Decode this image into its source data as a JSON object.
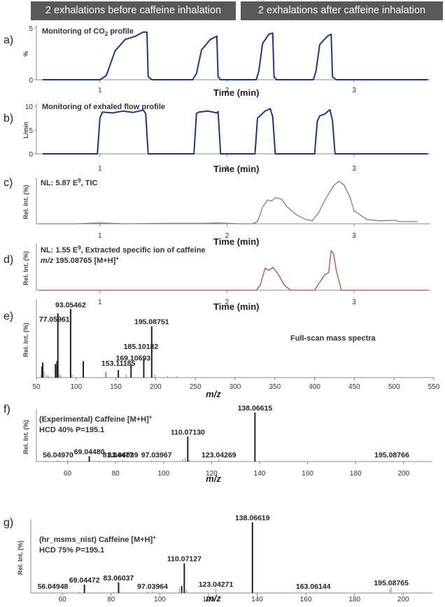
{
  "headers": [
    "2 exhalations before caffeine inhalation",
    "2 exhalations after caffeine inhalation"
  ],
  "chart_data": [
    {
      "panel": "a)",
      "type": "line",
      "title": "Monitoring of CO2 profile",
      "title_main": "Monitoring of CO",
      "title_sub": "2",
      "title_tail": " profile",
      "ylabel": "%",
      "xlabel": "Time (min)",
      "ylim": [
        0,
        5
      ],
      "xlim": [
        0.5,
        3.6
      ],
      "xticks": [
        1,
        2,
        3
      ],
      "yticks": [
        0,
        5
      ],
      "color": "#1f3a7a",
      "x": [
        0.55,
        1.0,
        1.05,
        1.12,
        1.2,
        1.28,
        1.34,
        1.37,
        1.38,
        1.41,
        1.55,
        1.73,
        1.76,
        1.8,
        1.87,
        1.92,
        1.93,
        1.95,
        2.1,
        2.23,
        2.25,
        2.28,
        2.33,
        2.36,
        2.37,
        2.39,
        2.55,
        2.68,
        2.7,
        2.73,
        2.79,
        2.82,
        2.83,
        2.86,
        3.58
      ],
      "y": [
        0,
        0,
        0.4,
        2.8,
        3.9,
        4.2,
        4.6,
        4.6,
        0.3,
        0,
        0,
        0,
        0.6,
        2.9,
        3.9,
        4.2,
        0.3,
        0,
        0,
        0,
        0.8,
        3.5,
        4.4,
        4.5,
        0.3,
        0,
        0,
        0,
        0.8,
        3.4,
        4.2,
        4.4,
        0.3,
        0,
        0
      ]
    },
    {
      "panel": "b)",
      "type": "line",
      "title": "Monitoring of exhaled flow profile",
      "ylabel": "L/min",
      "xlabel": "Time (min)",
      "ylim": [
        0,
        10
      ],
      "xlim": [
        0.5,
        3.6
      ],
      "xticks": [
        1,
        2,
        3
      ],
      "yticks": [
        0,
        5,
        10
      ],
      "color": "#1f3a7a",
      "x": [
        0.55,
        0.98,
        1.0,
        1.02,
        1.1,
        1.18,
        1.26,
        1.34,
        1.36,
        1.38,
        1.74,
        1.76,
        1.78,
        1.85,
        1.92,
        1.93,
        1.95,
        2.22,
        2.24,
        2.26,
        2.3,
        2.34,
        2.36,
        2.38,
        2.69,
        2.71,
        2.73,
        2.77,
        2.81,
        2.83,
        2.85,
        3.58
      ],
      "y": [
        0,
        0,
        7.5,
        8.8,
        8.6,
        9.0,
        8.7,
        9.2,
        8.5,
        0,
        0,
        8.5,
        8.8,
        9.0,
        8.6,
        8.9,
        0,
        0,
        7.5,
        8.0,
        9.0,
        9.5,
        7.8,
        0,
        0,
        6.8,
        8.0,
        8.4,
        9.3,
        7.0,
        0,
        0
      ]
    },
    {
      "panel": "c)",
      "type": "line",
      "title": "NL: 5.87 E9, TIC",
      "title_main": "NL: 5.87 E",
      "title_sup": "9",
      "title_tail": ", TIC",
      "ylabel": "Rel. Int. (%)",
      "xlabel": "Time (min)",
      "ylim": [
        0,
        100
      ],
      "xlim": [
        0.5,
        3.6
      ],
      "xticks": [
        1,
        2,
        3
      ],
      "color": "#7f7f7f",
      "x": [
        0.52,
        0.8,
        1.0,
        1.2,
        1.5,
        1.8,
        1.92,
        2.1,
        2.2,
        2.24,
        2.28,
        2.32,
        2.35,
        2.38,
        2.43,
        2.47,
        2.55,
        2.62,
        2.67,
        2.72,
        2.78,
        2.84,
        2.88,
        2.92,
        2.97,
        3.0,
        3.1,
        3.2,
        3.33,
        3.35,
        3.5
      ],
      "y": [
        0,
        0,
        2,
        0,
        1,
        1,
        2,
        0,
        0,
        5,
        38,
        55,
        52,
        60,
        57,
        40,
        20,
        10,
        7,
        25,
        60,
        88,
        98,
        90,
        60,
        30,
        10,
        7,
        8,
        5,
        5
      ]
    },
    {
      "panel": "d)",
      "type": "line",
      "title": "NL: 1.55 E9, Extracted specific ion of caffeine",
      "title_main": "NL: 1.55 E",
      "title_sup": "9",
      "title_tail": ", Extracted specific ion of caffeine",
      "subtitle": "m/z 195.08765 [M+H]+",
      "ylabel": "Rel. Int. (%)",
      "xlabel": "Time (min)",
      "ylim": [
        0,
        100
      ],
      "xlim": [
        0.5,
        3.6
      ],
      "xticks": [
        1,
        2,
        3
      ],
      "color": "#b04a4a",
      "x": [
        0.52,
        2.23,
        2.26,
        2.3,
        2.33,
        2.36,
        2.4,
        2.45,
        2.5,
        2.69,
        2.73,
        2.77,
        2.8,
        2.82,
        2.84,
        2.86,
        2.9,
        3.58
      ],
      "y": [
        0,
        0,
        10,
        50,
        45,
        52,
        38,
        12,
        0,
        0,
        18,
        35,
        40,
        90,
        82,
        45,
        0,
        0
      ]
    },
    {
      "panel": "e)",
      "type": "bar",
      "title": "Full-scan mass spectra",
      "ylabel": "Rel. Int. (%)",
      "xlabel": "m/z",
      "xlim": [
        50,
        550
      ],
      "ylim": [
        0,
        100
      ],
      "xticks": [
        50,
        100,
        150,
        200,
        250,
        300,
        350,
        400,
        450,
        500,
        550
      ],
      "x": [
        56,
        57,
        58,
        60,
        63,
        65,
        74,
        76,
        77.05961,
        79,
        81,
        93.05462,
        95,
        109,
        137,
        138,
        153.11185,
        163,
        169.10693,
        185.10182,
        195.08751,
        199,
        215,
        227
      ],
      "y": [
        4,
        15,
        20,
        8,
        4,
        3,
        18,
        22,
        85,
        5,
        3,
        91,
        4,
        22,
        8,
        7,
        10,
        4,
        17,
        25,
        68,
        4,
        2,
        2
      ],
      "labels": [
        {
          "x": 93.05462,
          "text": "93.05462"
        },
        {
          "x": 77.05961,
          "text": "77.05961"
        },
        {
          "x": 195.08751,
          "text": "195.08751"
        },
        {
          "x": 185.10182,
          "text": "185.10182"
        },
        {
          "x": 169.10693,
          "text": "169.10693"
        },
        {
          "x": 153.11185,
          "text": "153.11185"
        }
      ]
    },
    {
      "panel": "f)",
      "type": "bar",
      "title": "(Experimental) Caffeine [M+H]+",
      "title_main": "(Experimental) Caffeine  [M+H]",
      "title_sup": "+",
      "subtitle": "HCD 40% P=195.1",
      "ylabel": "Rel. Int. (%)",
      "xlabel": "m/z",
      "xlim": [
        47,
        212
      ],
      "ylim": [
        0,
        100
      ],
      "xticks": [
        60,
        80,
        100,
        120,
        140,
        160,
        180,
        200
      ],
      "x": [
        51,
        56.0497,
        60,
        69.0448,
        73,
        81.04477,
        83.06039,
        95,
        97.03967,
        108,
        109,
        110.0713,
        111,
        123.04269,
        138.06615,
        195.08766
      ],
      "y": [
        2,
        3,
        3,
        11,
        2,
        2,
        3,
        2,
        2,
        5,
        8,
        51,
        4,
        5,
        100,
        2
      ],
      "labels": [
        {
          "x": 138.06615,
          "text": "138.06615"
        },
        {
          "x": 110.0713,
          "text": "110.07130"
        },
        {
          "x": 69.0448,
          "text": "69.04480"
        },
        {
          "x": 83.06039,
          "text": "83.06039"
        },
        {
          "x": 56.0497,
          "text": "56.04970"
        },
        {
          "x": 81.04477,
          "text": "81.04477"
        },
        {
          "x": 97.03967,
          "text": "97.03967"
        },
        {
          "x": 123.04269,
          "text": "123.04269"
        },
        {
          "x": 195.08766,
          "text": "195.08766"
        }
      ]
    },
    {
      "panel": "g)",
      "type": "bar",
      "title": "(hr_msms_nist) Caffeine [M+H]+",
      "title_main": "(hr_msms_nist) Caffeine  [M+H]",
      "title_sup": "+",
      "subtitle": "HCD  75% P=195.1",
      "ylabel": "Rel. Int. (%)",
      "xlabel": "m/z",
      "xlim": [
        47,
        212
      ],
      "ylim": [
        0,
        100
      ],
      "xticks": [
        60,
        80,
        100,
        120,
        140,
        160,
        180,
        200
      ],
      "x": [
        56.04948,
        67,
        69.04472,
        81,
        83.06037,
        95,
        97.03964,
        108,
        109,
        110.07127,
        111,
        123.04271,
        138.06619,
        163.06144,
        194.5,
        195.08765
      ],
      "y": [
        1,
        2,
        12,
        2,
        15,
        2,
        2,
        8,
        10,
        42,
        5,
        6,
        100,
        1,
        6,
        8
      ],
      "labels": [
        {
          "x": 138.06619,
          "text": "138.06619"
        },
        {
          "x": 110.07127,
          "text": "110.07127"
        },
        {
          "x": 69.04472,
          "text": "69.04472"
        },
        {
          "x": 83.06037,
          "text": "83.06037"
        },
        {
          "x": 56.04948,
          "text": "56.04948"
        },
        {
          "x": 97.03964,
          "text": "97.03964"
        },
        {
          "x": 123.04271,
          "text": "123.04271"
        },
        {
          "x": 163.06144,
          "text": "163.06144"
        },
        {
          "x": 195.08765,
          "text": "195.08765"
        }
      ]
    }
  ]
}
